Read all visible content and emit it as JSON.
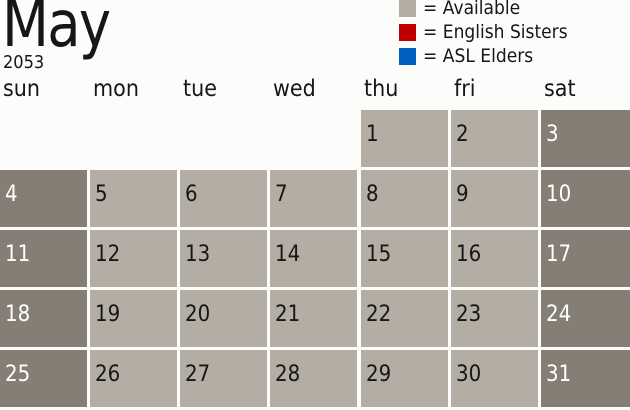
{
  "title": {
    "month": "May",
    "year": "2053"
  },
  "legend": [
    {
      "label": "= Available",
      "color": "#b3ada4"
    },
    {
      "label": "= English Sisters",
      "color": "#c00000"
    },
    {
      "label": "= ASL Elders",
      "color": "#0060c0"
    }
  ],
  "colors": {
    "weekday": "#b3ada4",
    "weekend": "#847e75",
    "weekday_text": "#161616",
    "weekend_text": "#ffffff"
  },
  "weekdays": [
    "sun",
    "mon",
    "tue",
    "wed",
    "thu",
    "fri",
    "sat"
  ],
  "first_weekday_index": 4,
  "days": [
    1,
    2,
    3,
    4,
    5,
    6,
    7,
    8,
    9,
    10,
    11,
    12,
    13,
    14,
    15,
    16,
    17,
    18,
    19,
    20,
    21,
    22,
    23,
    24,
    25,
    26,
    27,
    28,
    29,
    30,
    31
  ]
}
